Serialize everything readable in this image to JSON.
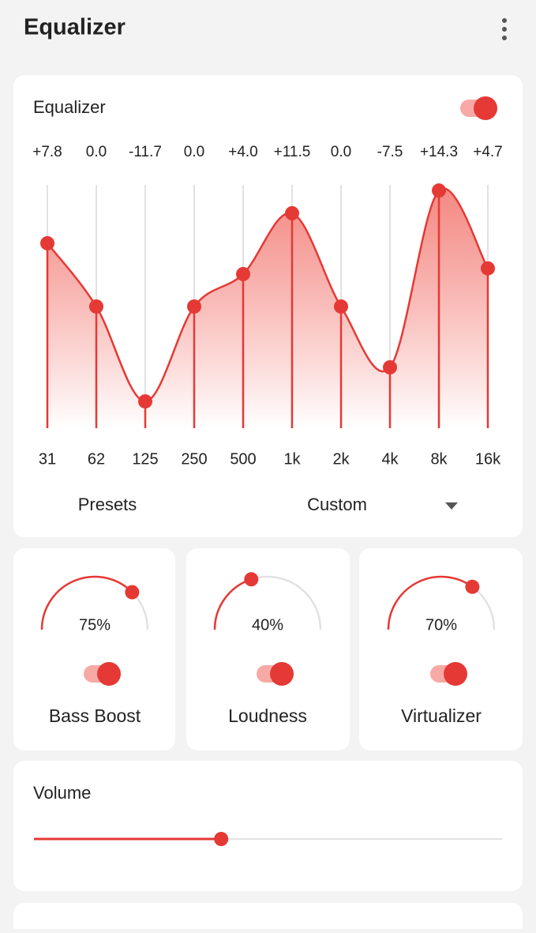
{
  "header": {
    "title": "Equalizer"
  },
  "equalizer": {
    "title": "Equalizer",
    "enabled": true,
    "categories": [
      "31",
      "62",
      "125",
      "250",
      "500",
      "1k",
      "2k",
      "4k",
      "8k",
      "16k"
    ],
    "values": [
      7.8,
      0.0,
      -11.7,
      0.0,
      4.0,
      11.5,
      0.0,
      -7.5,
      14.3,
      4.7
    ],
    "value_labels": [
      "+7.8",
      "0.0",
      "-11.7",
      "0.0",
      "+4.0",
      "+11.5",
      "0.0",
      "-7.5",
      "+14.3",
      "+4.7"
    ],
    "ylim": [
      -15,
      15
    ],
    "color": "#e53935",
    "presets_label": "Presets",
    "preset": "Custom"
  },
  "knobs": [
    {
      "name": "Bass Boost",
      "value": 75,
      "value_label": "75%",
      "enabled": true
    },
    {
      "name": "Loudness",
      "value": 40,
      "value_label": "40%",
      "enabled": true
    },
    {
      "name": "Virtualizer",
      "value": 70,
      "value_label": "70%",
      "enabled": true
    }
  ],
  "volume": {
    "label": "Volume",
    "value": 40,
    "range": [
      0,
      100
    ]
  }
}
